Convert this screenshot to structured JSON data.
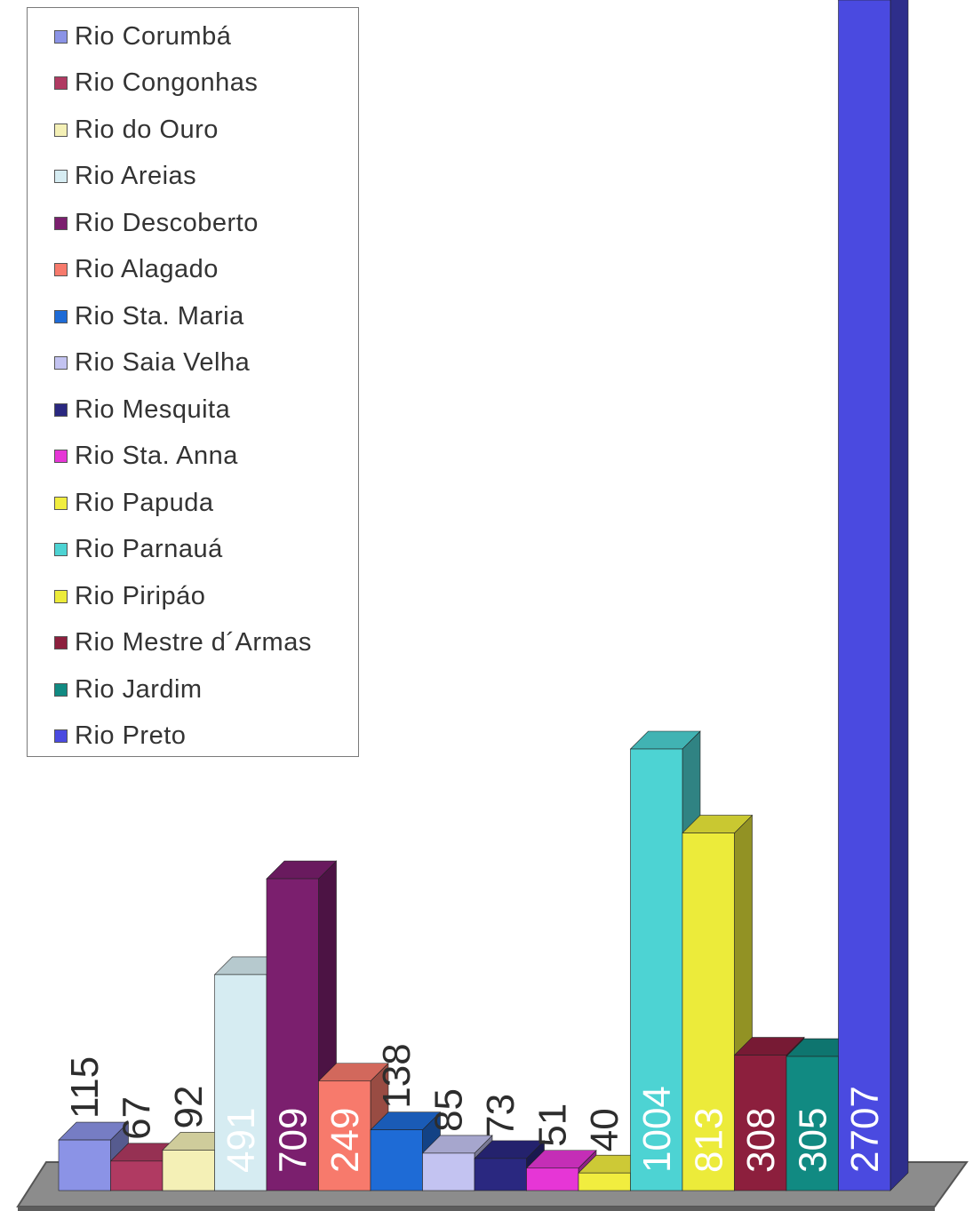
{
  "chart_data": {
    "type": "bar",
    "three_d": true,
    "title": "",
    "xlabel": "",
    "ylabel": "",
    "ylim": [
      0,
      2707
    ],
    "grid": false,
    "legend_position": "top-left",
    "series": [
      {
        "name": "Rio Corumbá",
        "value": 115,
        "color": "#8b93e6"
      },
      {
        "name": "Rio Congonhas",
        "value": 67,
        "color": "#b03a62"
      },
      {
        "name": "Rio do Ouro",
        "value": 92,
        "color": "#f4f0b6"
      },
      {
        "name": "Rio Areias",
        "value": 491,
        "color": "#d6ecf2"
      },
      {
        "name": "Rio Descoberto",
        "value": 709,
        "color": "#7b1f6e"
      },
      {
        "name": "Rio Alagado",
        "value": 249,
        "color": "#f77a6c"
      },
      {
        "name": "Rio Sta. Maria",
        "value": 138,
        "color": "#1e6bd6"
      },
      {
        "name": "Rio Saia Velha",
        "value": 85,
        "color": "#c3c3f1"
      },
      {
        "name": "Rio Mesquita",
        "value": 73,
        "color": "#2a2880"
      },
      {
        "name": "Rio Sta. Anna",
        "value": 51,
        "color": "#e636d6"
      },
      {
        "name": "Rio Papuda",
        "value": 40,
        "color": "#f1ed3f"
      },
      {
        "name": "Rio Parnauá",
        "value": 1004,
        "color": "#4dd3d3"
      },
      {
        "name": "Rio Piripáo",
        "value": 813,
        "color": "#eceb3a"
      },
      {
        "name": "Rio Mestre d´Armas",
        "value": 308,
        "color": "#8c1f3d"
      },
      {
        "name": "Rio Jardim",
        "value": 305,
        "color": "#118a82"
      },
      {
        "name": "Rio Preto",
        "value": 2707,
        "color": "#4a4ae0"
      }
    ],
    "label_styles": [
      {
        "value_label_color": "#2d2d2d",
        "label_inside": false
      },
      {
        "value_label_color": "#2d2d2d",
        "label_inside": false
      },
      {
        "value_label_color": "#2d2d2d",
        "label_inside": false
      },
      {
        "value_label_color": "#ffffff",
        "label_inside": true
      },
      {
        "value_label_color": "#ffffff",
        "label_inside": true
      },
      {
        "value_label_color": "#ffffff",
        "label_inside": true
      },
      {
        "value_label_color": "#2d2d2d",
        "label_inside": false
      },
      {
        "value_label_color": "#2d2d2d",
        "label_inside": false
      },
      {
        "value_label_color": "#2d2d2d",
        "label_inside": false
      },
      {
        "value_label_color": "#2d2d2d",
        "label_inside": false
      },
      {
        "value_label_color": "#2d2d2d",
        "label_inside": false
      },
      {
        "value_label_color": "#ffffff",
        "label_inside": true
      },
      {
        "value_label_color": "#ffffff",
        "label_inside": true
      },
      {
        "value_label_color": "#ffffff",
        "label_inside": true
      },
      {
        "value_label_color": "#ffffff",
        "label_inside": true
      },
      {
        "value_label_color": "#ffffff",
        "label_inside": true
      }
    ],
    "floor_color": "#8c8c8c"
  }
}
